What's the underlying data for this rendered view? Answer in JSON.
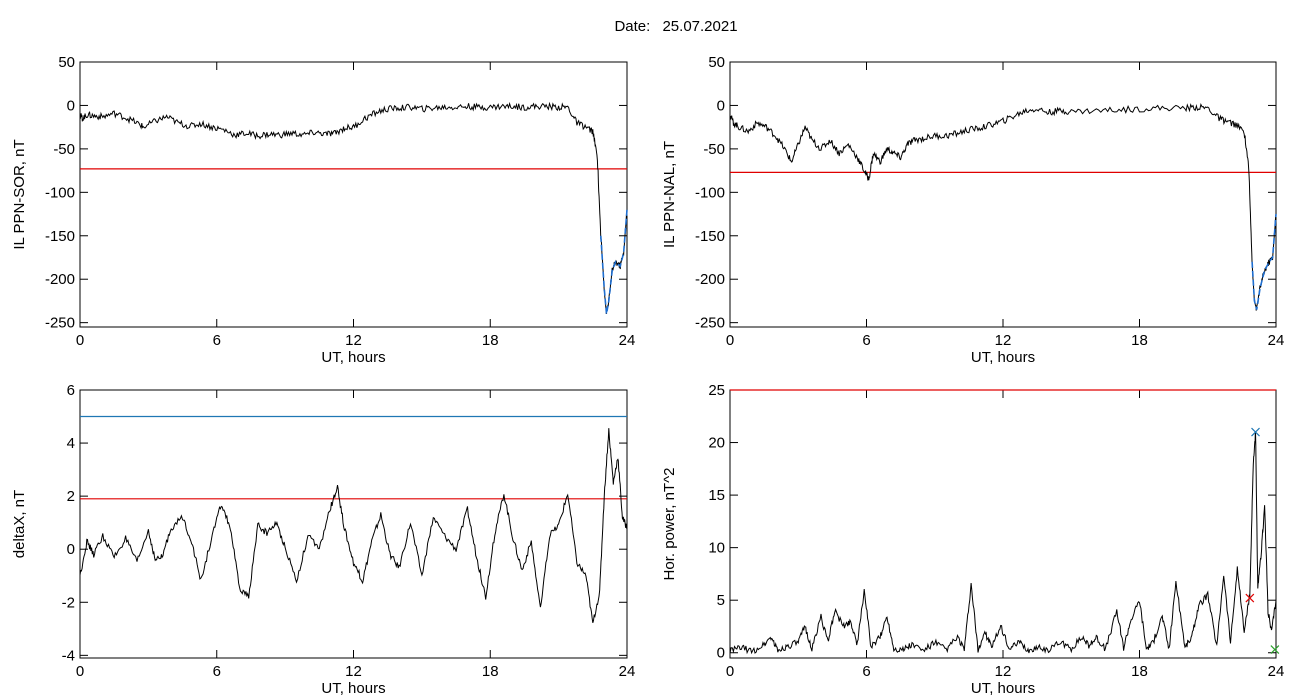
{
  "header": {
    "date_label": "Date:",
    "date_value": "25.07.2021"
  },
  "colors": {
    "trace": "#000000",
    "threshold_red": "#e00000",
    "threshold_blue": "#1f77b4",
    "storm_blue": "#1f6fd1",
    "marker_green": "#2ca02c"
  },
  "chart_data": [
    {
      "id": "sor",
      "type": "line",
      "xlabel": "UT, hours",
      "ylabel": "IL PPN-SOR, nT",
      "xlim": [
        0,
        24
      ],
      "ylim": [
        -255,
        50
      ],
      "xticks": [
        0,
        6,
        12,
        18,
        24
      ],
      "yticks": [
        50,
        0,
        -50,
        -100,
        -150,
        -200,
        -250
      ],
      "threshold": -73,
      "series": [
        {
          "x": [
            0,
            0.1,
            0.3,
            0.6,
            1,
            1.5,
            2,
            2.5,
            2.8,
            3.3,
            3.8,
            4.3,
            4.8,
            5.3,
            5.8,
            6.3,
            6.8,
            7.3,
            7.8,
            8.3,
            8.8,
            9.3,
            9.8,
            10.3,
            10.8,
            11.2,
            11.6,
            12,
            12.5,
            13,
            13.5,
            14,
            14.5,
            15,
            15.5,
            16,
            16.5,
            17,
            17.5,
            18,
            18.5,
            19,
            19.5,
            20,
            20.5,
            21,
            21.4,
            21.8,
            22.2,
            22.5,
            22.7,
            22.85,
            23,
            23.1,
            23.2,
            23.35,
            23.5,
            23.7,
            23.85,
            24
          ],
          "y": [
            -10,
            -15,
            -11,
            -12,
            -13,
            -9,
            -14,
            -20,
            -25,
            -18,
            -13,
            -20,
            -24,
            -21,
            -25,
            -28,
            -34,
            -32,
            -35,
            -33,
            -34,
            -32,
            -34,
            -31,
            -33,
            -32,
            -26,
            -25,
            -15,
            -8,
            -4,
            -3,
            -2,
            -4,
            -3,
            -2,
            -2,
            -1,
            -2,
            -2,
            -1,
            -1,
            -2,
            -1,
            -1,
            -2,
            -2,
            -20,
            -25,
            -30,
            -60,
            -150,
            -210,
            -240,
            -225,
            -190,
            -180,
            -185,
            -170,
            -120
          ]
        }
      ]
    },
    {
      "id": "nal",
      "type": "line",
      "xlabel": "UT, hours",
      "ylabel": "IL PPN-NAL, nT",
      "xlim": [
        0,
        24
      ],
      "ylim": [
        -255,
        50
      ],
      "xticks": [
        0,
        6,
        12,
        18,
        24
      ],
      "yticks": [
        50,
        0,
        -50,
        -100,
        -150,
        -200,
        -250
      ],
      "threshold": -77,
      "series": [
        {
          "x": [
            0,
            0.15,
            0.4,
            0.8,
            1.2,
            1.6,
            2,
            2.4,
            2.7,
            3,
            3.3,
            3.6,
            4,
            4.4,
            4.8,
            5.2,
            5.6,
            5.9,
            6.1,
            6.3,
            6.6,
            6.9,
            7.2,
            7.5,
            7.8,
            8.1,
            8.5,
            9,
            9.5,
            10,
            10.5,
            11,
            11.5,
            12,
            12.5,
            13,
            13.5,
            14,
            14.5,
            15,
            16,
            17,
            18,
            19,
            20,
            20.5,
            21,
            21.5,
            21.8,
            22.2,
            22.6,
            22.8,
            22.95,
            23.05,
            23.15,
            23.3,
            23.5,
            23.7,
            23.85,
            24
          ],
          "y": [
            -10,
            -20,
            -25,
            -30,
            -20,
            -25,
            -35,
            -50,
            -65,
            -45,
            -25,
            -40,
            -50,
            -40,
            -55,
            -45,
            -60,
            -75,
            -85,
            -55,
            -65,
            -50,
            -55,
            -60,
            -45,
            -40,
            -38,
            -35,
            -35,
            -32,
            -28,
            -26,
            -22,
            -18,
            -12,
            -6,
            -4,
            -8,
            -6,
            -7,
            -6,
            -5,
            -4,
            -3,
            -3,
            -2,
            -3,
            -15,
            -18,
            -22,
            -30,
            -70,
            -180,
            -225,
            -235,
            -210,
            -190,
            -180,
            -175,
            -125
          ]
        }
      ]
    },
    {
      "id": "deltax",
      "type": "line",
      "xlabel": "UT, hours",
      "ylabel": "deltaX, nT",
      "xlim": [
        0,
        24
      ],
      "ylim": [
        -4.1,
        6
      ],
      "xticks": [
        0,
        6,
        12,
        18,
        24
      ],
      "yticks": [
        6,
        4,
        2,
        0,
        -2,
        -4
      ],
      "thresholds": [
        5,
        1.9
      ],
      "series": [
        {
          "x": [
            0,
            0.3,
            0.6,
            1,
            1.5,
            2,
            2.5,
            3,
            3.3,
            3.6,
            4,
            4.5,
            4.9,
            5.3,
            5.8,
            6.2,
            6.6,
            7,
            7.4,
            7.8,
            8.2,
            8.6,
            9,
            9.5,
            10,
            10.5,
            11,
            11.3,
            11.6,
            12,
            12.4,
            12.8,
            13.2,
            13.6,
            14,
            14.5,
            15,
            15.5,
            16,
            16.5,
            17,
            17.4,
            17.8,
            18.2,
            18.6,
            19,
            19.4,
            19.8,
            20.2,
            20.6,
            21,
            21.4,
            21.8,
            22.2,
            22.5,
            22.8,
            23,
            23.2,
            23.4,
            23.6,
            23.8,
            24
          ],
          "y": [
            -1.0,
            0.3,
            -0.2,
            0.5,
            -0.3,
            0.4,
            -0.5,
            0.7,
            -0.4,
            -0.3,
            0.8,
            1.2,
            0.3,
            -1.2,
            0.5,
            1.7,
            0.8,
            -1.5,
            -1.8,
            0.9,
            0.6,
            1.0,
            0.1,
            -1.2,
            0.5,
            0.0,
            1.6,
            2.3,
            0.8,
            -0.5,
            -1.2,
            0.3,
            1.3,
            -0.2,
            -0.7,
            1.0,
            -1.0,
            1.2,
            0.5,
            0.0,
            1.5,
            -0.3,
            -1.8,
            0.6,
            2.1,
            0.4,
            -0.8,
            0.3,
            -2.3,
            0.5,
            0.9,
            2.1,
            -0.5,
            -1.0,
            -2.8,
            -1.6,
            2.0,
            4.5,
            2.5,
            3.5,
            1.2,
            0.8
          ]
        }
      ]
    },
    {
      "id": "power",
      "type": "line",
      "xlabel": "UT, hours",
      "ylabel": "Hor. power, nT^2",
      "xlim": [
        0,
        24
      ],
      "ylim": [
        -0.5,
        25
      ],
      "xticks": [
        0,
        6,
        12,
        18,
        24
      ],
      "yticks": [
        25,
        20,
        15,
        10,
        5,
        0
      ],
      "threshold": 25,
      "markers": [
        {
          "x": 23.1,
          "y": 21,
          "shape": "x"
        },
        {
          "x": 22.85,
          "y": 5.2,
          "shape": "x"
        },
        {
          "x": 23.95,
          "y": 0.3,
          "shape": "x"
        }
      ],
      "series": [
        {
          "x": [
            0,
            0.5,
            1,
            1.5,
            1.8,
            2.1,
            2.5,
            3,
            3.3,
            3.6,
            4,
            4.3,
            4.6,
            5,
            5.3,
            5.6,
            5.9,
            6.2,
            6.6,
            6.9,
            7.2,
            7.6,
            8,
            8.5,
            9,
            9.5,
            10,
            10.3,
            10.6,
            10.9,
            11.2,
            11.5,
            11.9,
            12.3,
            12.7,
            13.1,
            13.5,
            14,
            14.5,
            15,
            15.5,
            15.8,
            16.1,
            16.5,
            17,
            17.3,
            17.6,
            18,
            18.3,
            18.6,
            19,
            19.3,
            19.6,
            20,
            20.3,
            20.6,
            21,
            21.4,
            21.7,
            22,
            22.3,
            22.6,
            22.85,
            23.0,
            23.1,
            23.2,
            23.35,
            23.5,
            23.65,
            23.8,
            24
          ],
          "y": [
            0.2,
            0.5,
            0.1,
            0.8,
            1.5,
            0.2,
            0.6,
            1.0,
            2.5,
            0.3,
            3.5,
            1.0,
            4.0,
            2.5,
            3.0,
            0.8,
            6.0,
            0.5,
            1.5,
            3.5,
            0.4,
            0.3,
            0.8,
            0.2,
            1.0,
            0.3,
            1.5,
            0.3,
            6.5,
            0.2,
            2.0,
            0.5,
            2.5,
            0.3,
            1.0,
            0.2,
            0.5,
            0.3,
            1.0,
            0.4,
            1.5,
            0.6,
            1.5,
            0.3,
            4.0,
            0.5,
            3.0,
            5.0,
            0.4,
            1.0,
            3.5,
            0.3,
            6.8,
            0.5,
            1.5,
            4.5,
            5.5,
            0.6,
            7.5,
            1.0,
            8.0,
            2.0,
            5.5,
            18.0,
            21.0,
            6.0,
            9.5,
            14.0,
            4.0,
            2.0,
            5.0
          ]
        }
      ]
    }
  ]
}
